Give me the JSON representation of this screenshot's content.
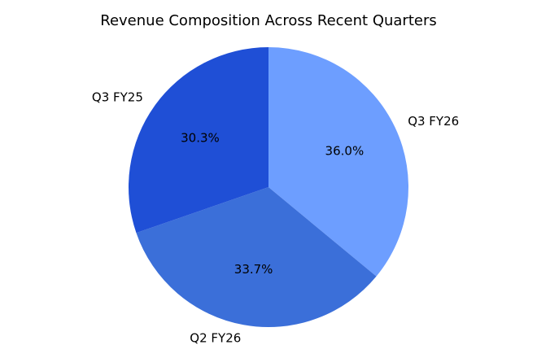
{
  "chart_data": {
    "type": "pie",
    "title": "Revenue Composition Across Recent Quarters",
    "start_angle_deg": 90,
    "direction": "clockwise",
    "slices": [
      {
        "label": "Q3 FY26",
        "value": 36.0,
        "display": "36.0%",
        "color": "#6d9eff"
      },
      {
        "label": "Q2 FY26",
        "value": 33.7,
        "display": "33.7%",
        "color": "#3b6fd9"
      },
      {
        "label": "Q3 FY25",
        "value": 30.3,
        "display": "30.3%",
        "color": "#1f4fd6"
      }
    ],
    "legend": "none",
    "grid": false
  }
}
